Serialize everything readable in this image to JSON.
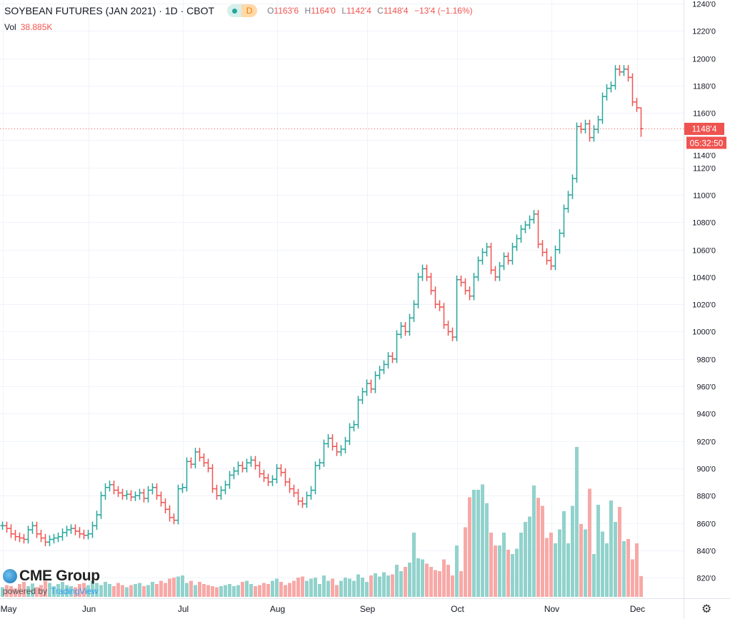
{
  "header": {
    "title": "SOYBEAN FUTURES (JAN 2021) · 1D · CBOT",
    "interval_badge": "D",
    "ohlc": {
      "o_label": "O",
      "o": "1163'6",
      "h_label": "H",
      "h": "1164'0",
      "l_label": "L",
      "l": "1142'4",
      "c_label": "C",
      "c": "1148'4",
      "change": "−13'4 (−1.16%)"
    },
    "volume_label": "Vol",
    "volume_value": "38.885K"
  },
  "price_tag": "1148'4",
  "countdown": "05:32:50",
  "logo": {
    "brand": "CME Group",
    "powered": "powered by",
    "tv": "TradingView"
  },
  "colors": {
    "up": "#26a69a",
    "down": "#ef5350",
    "up_vol": "#92d2cc",
    "down_vol": "#f7a9a7",
    "grid": "#f0f3fa"
  },
  "icons": {
    "settings": "gear-icon"
  },
  "chart_data": {
    "type": "ohlc",
    "title": "SOYBEAN FUTURES (JAN 2021)",
    "ylim": [
      810,
      1245
    ],
    "y_ticks": [
      {
        "v": 820,
        "label": "820'0"
      },
      {
        "v": 840,
        "label": "840'0"
      },
      {
        "v": 860,
        "label": "860'0"
      },
      {
        "v": 880,
        "label": "880'0"
      },
      {
        "v": 900,
        "label": "900'0"
      },
      {
        "v": 920,
        "label": "920'0"
      },
      {
        "v": 940,
        "label": "940'0"
      },
      {
        "v": 960,
        "label": "960'0"
      },
      {
        "v": 980,
        "label": "980'0"
      },
      {
        "v": 1000,
        "label": "1000'0"
      },
      {
        "v": 1020,
        "label": "1020'0"
      },
      {
        "v": 1040,
        "label": "1040'0"
      },
      {
        "v": 1060,
        "label": "1060'0"
      },
      {
        "v": 1080,
        "label": "1080'0"
      },
      {
        "v": 1100,
        "label": "1100'0"
      },
      {
        "v": 1120,
        "label": "1120'0"
      },
      {
        "v": 1140,
        "label": "1140'0"
      },
      {
        "v": 1160,
        "label": "1160'0"
      },
      {
        "v": 1180,
        "label": "1180'0"
      },
      {
        "v": 1200,
        "label": "1200'0"
      },
      {
        "v": 1220,
        "label": "1220'0"
      },
      {
        "v": 1240,
        "label": "1240'0"
      }
    ],
    "x_ticks": [
      {
        "bar": 0,
        "label": "May"
      },
      {
        "bar": 20,
        "label": "Jun"
      },
      {
        "bar": 42,
        "label": "Jul"
      },
      {
        "bar": 64,
        "label": "Aug"
      },
      {
        "bar": 85,
        "label": "Sep"
      },
      {
        "bar": 106,
        "label": "Oct"
      },
      {
        "bar": 128,
        "label": "Nov"
      },
      {
        "bar": 148,
        "label": "Dec"
      }
    ],
    "wick": 3,
    "close": [
      858,
      856,
      852,
      850,
      849,
      848,
      855,
      858,
      852,
      849,
      846,
      848,
      849,
      850,
      853,
      855,
      856,
      854,
      852,
      851,
      852,
      858,
      866,
      880,
      886,
      888,
      884,
      882,
      880,
      881,
      879,
      880,
      882,
      878,
      884,
      886,
      880,
      875,
      870,
      864,
      862,
      885,
      886,
      905,
      903,
      912,
      908,
      904,
      900,
      885,
      880,
      884,
      888,
      895,
      898,
      902,
      900,
      904,
      906,
      902,
      896,
      893,
      890,
      892,
      900,
      897,
      890,
      885,
      882,
      876,
      874,
      880,
      884,
      902,
      904,
      918,
      922,
      916,
      912,
      914,
      920,
      930,
      932,
      950,
      956,
      962,
      958,
      968,
      972,
      976,
      982,
      980,
      998,
      1004,
      1000,
      1010,
      1020,
      1040,
      1046,
      1040,
      1030,
      1020,
      1018,
      1005,
      1000,
      996,
      1038,
      1036,
      1030,
      1026,
      1040,
      1052,
      1058,
      1062,
      1045,
      1040,
      1048,
      1055,
      1052,
      1062,
      1068,
      1075,
      1078,
      1082,
      1086,
      1064,
      1058,
      1052,
      1048,
      1060,
      1072,
      1090,
      1100,
      1112,
      1150,
      1148,
      1152,
      1142,
      1148,
      1155,
      1172,
      1178,
      1180,
      1192,
      1190,
      1192,
      1186,
      1168,
      1163.75,
      1148.5
    ],
    "volume_k": [
      18,
      22,
      20,
      16,
      24,
      28,
      20,
      25,
      18,
      22,
      30,
      26,
      20,
      24,
      28,
      22,
      20,
      18,
      24,
      26,
      22,
      30,
      26,
      22,
      28,
      24,
      20,
      26,
      22,
      18,
      22,
      24,
      26,
      20,
      22,
      28,
      24,
      30,
      26,
      34,
      36,
      38,
      40,
      26,
      30,
      22,
      28,
      24,
      22,
      20,
      18,
      20,
      22,
      24,
      20,
      22,
      28,
      30,
      24,
      20,
      22,
      26,
      24,
      30,
      34,
      28,
      22,
      26,
      30,
      36,
      38,
      30,
      34,
      36,
      24,
      40,
      30,
      34,
      22,
      30,
      36,
      34,
      30,
      42,
      36,
      28,
      40,
      44,
      38,
      46,
      40,
      42,
      60,
      48,
      56,
      64,
      120,
      72,
      70,
      62,
      56,
      50,
      48,
      70,
      60,
      40,
      96,
      48,
      130,
      186,
      200,
      200,
      210,
      175,
      120,
      96,
      96,
      120,
      88,
      80,
      90,
      120,
      140,
      150,
      208,
      185,
      170,
      110,
      120,
      100,
      126,
      160,
      100,
      170,
      280,
      136,
      126,
      202,
      80,
      172,
      122,
      100,
      180,
      140,
      168,
      104,
      108,
      70,
      100,
      38.885
    ],
    "last_price": 1148.5
  }
}
